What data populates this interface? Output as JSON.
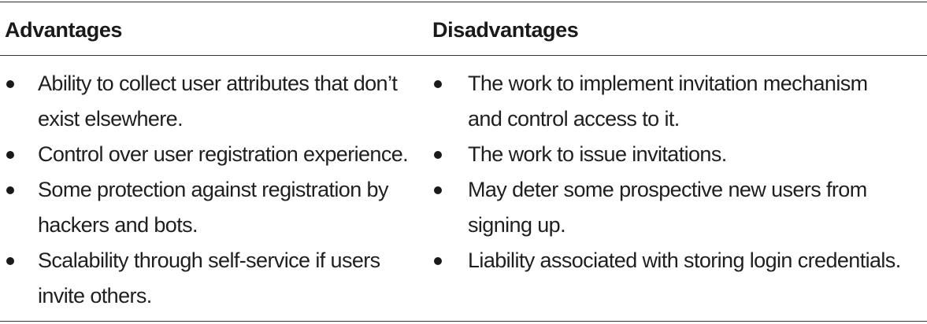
{
  "table": {
    "headers": {
      "advantages": "Advantages",
      "disadvantages": "Disadvantages"
    },
    "advantages": [
      {
        "line1": "Ability to collect user attributes that don’t",
        "line2": "exist elsewhere."
      },
      {
        "line1": "Control over user registration experience.",
        "line2": ""
      },
      {
        "line1": "Some protection against registration by",
        "line2": "hackers and bots."
      },
      {
        "line1": "Scalability through self-service if users",
        "line2": "invite others."
      }
    ],
    "disadvantages": [
      {
        "line1": "The work to implement invitation mechanism",
        "line2": "and control access to it."
      },
      {
        "line1": "The work to issue invitations.",
        "line2": ""
      },
      {
        "line1": "May deter some prospective new users from",
        "line2": "signing up."
      },
      {
        "line1": "Liability associated with storing login credentials.",
        "line2": ""
      }
    ]
  }
}
